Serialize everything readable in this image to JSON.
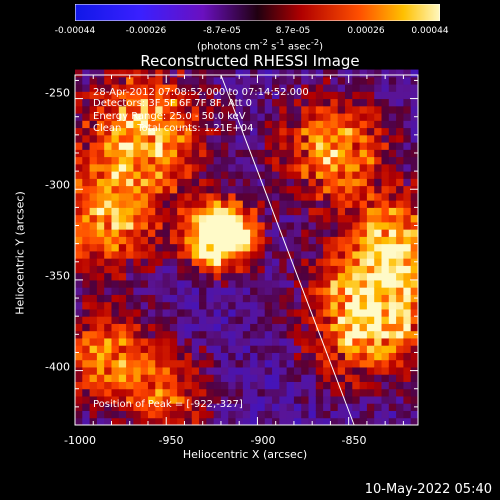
{
  "colorbar": {
    "ticks": [
      "-0.00044",
      "-0.00026",
      "-8.7e-05",
      "8.7e-05",
      "0.00026",
      "0.00044"
    ],
    "unit_html": "(photons cm<sup>-2</sup> s<sup>-1</sup> asec<sup>-2</sup>)"
  },
  "title": "Reconstructed RHESSI Image",
  "annotation": {
    "line1": "28-Apr-2012 07:08:52.000 to 07:14:52.000",
    "line2": "Detectors: 3F 5F 6F 7F 8F, Att 0",
    "line3": "Energy Range: 25.0 - 50.0 keV",
    "line4": "Clean     Total counts: 1.21E+04"
  },
  "peak": "Position of Peak = [-922,-327]",
  "xaxis": {
    "label": "Heliocentric X (arcsec)",
    "ticks": [
      "-1000",
      "-950",
      "-900",
      "-850"
    ]
  },
  "yaxis": {
    "label": "Heliocentric Y (arcsec)",
    "ticks": [
      "-250",
      "-300",
      "-350",
      "-400"
    ]
  },
  "timestamp": "10-May-2022 05:40",
  "colors": {
    "background": "#000000",
    "axis": "#ffffff"
  },
  "chart_data": {
    "type": "heatmap",
    "title": "Reconstructed RHESSI Image",
    "xlabel": "Heliocentric X (arcsec)",
    "ylabel": "Heliocentric Y (arcsec)",
    "xlim": [
      -1000,
      -812
    ],
    "ylim": [
      -430,
      -237
    ],
    "peak": [
      -922,
      -327
    ],
    "limb_line": [
      [
        -920,
        -237
      ],
      [
        -847,
        -430
      ]
    ],
    "colorbar_range": [
      -0.00044,
      0.00044
    ]
  }
}
